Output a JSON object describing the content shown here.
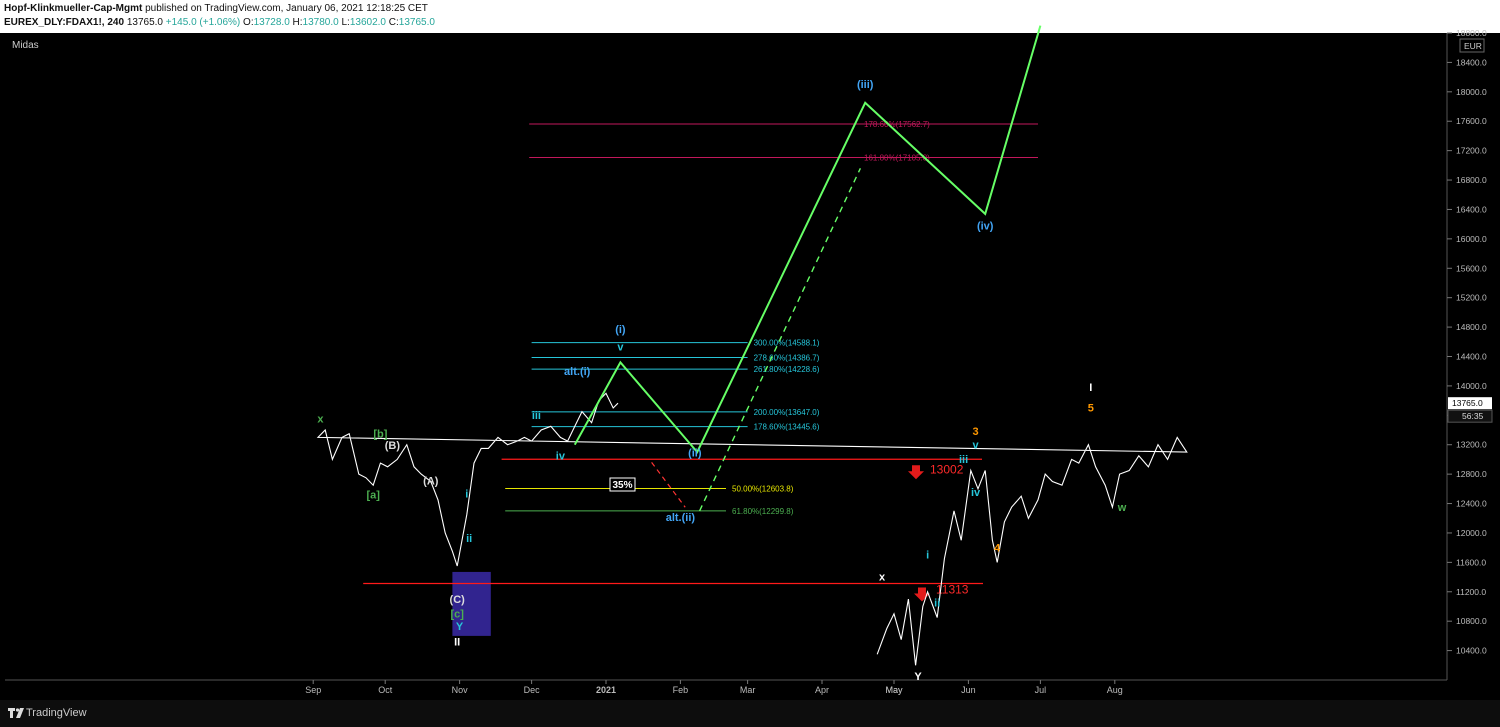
{
  "header": {
    "author": "Hopf-Klinkmueller-Cap-Mgmt",
    "published_text": "published on TradingView.com, January 06, 2021 12:18:25 CET",
    "symbol": "EUREX_DLY:FDAX1!, 240",
    "last": "13765.0",
    "change": "+145.0 (+1.06%)",
    "open_label": "O:",
    "open": "13728.0",
    "high_label": "H:",
    "high": "13780.0",
    "low_label": "L:",
    "low": "13602.0",
    "close_label": "C:",
    "close": "13765.0"
  },
  "indicator_label": "Midas",
  "footer": {
    "brand": "TradingView"
  },
  "chart_data": {
    "type": "line",
    "currency": "EUR",
    "ylim": [
      10000,
      18800
    ],
    "y_ticks": [
      10400,
      10800,
      11200,
      11600,
      12000,
      12400,
      12800,
      13200,
      13600,
      14000,
      14400,
      14800,
      15200,
      15600,
      16000,
      16400,
      16800,
      17200,
      17600,
      18000,
      18400,
      18800
    ],
    "x_ticks": [
      "May",
      "Jun",
      "Jul",
      "Aug",
      "Sep",
      "Oct",
      "Nov",
      "Dec",
      "2021",
      "Feb",
      "Mar",
      "Apr",
      "May"
    ],
    "price_tag": {
      "value": "13765.0",
      "countdown": "56:35"
    },
    "price_series": {
      "x": [
        "Apr 24",
        "Apr 28",
        "May 1",
        "May 4",
        "May 7",
        "May 10",
        "May 13",
        "May 15",
        "May 19",
        "May 22",
        "May 26",
        "May 29",
        "Jun 2",
        "Jun 5",
        "Jun 8",
        "Jun 11",
        "Jun 13",
        "Jun 16",
        "Jun 19",
        "Jun 23",
        "Jun 26",
        "Jun 30",
        "Jul 3",
        "Jul 6",
        "Jul 10",
        "Jul 14",
        "Jul 17",
        "Jul 21",
        "Jul 24",
        "Jul 28",
        "Jul 31",
        "Aug 3",
        "Aug 7",
        "Aug 11",
        "Aug 15",
        "Aug 19",
        "Aug 23",
        "Aug 27",
        "Aug 31",
        "Sep 3",
        "Sep 6",
        "Sep 9",
        "Sep 13",
        "Sep 16",
        "Sep 20",
        "Sep 23",
        "Sep 26",
        "Sep 29",
        "Oct 2",
        "Oct 6",
        "Oct 10",
        "Oct 13",
        "Oct 16",
        "Oct 20",
        "Oct 23",
        "Oct 26",
        "Oct 29",
        "Oct 31",
        "Nov 2",
        "Nov 4",
        "Nov 7",
        "Nov 10",
        "Nov 13",
        "Nov 17",
        "Nov 21",
        "Nov 25",
        "Nov 28",
        "Dec 1",
        "Dec 5",
        "Dec 9",
        "Dec 13",
        "Dec 16",
        "Dec 19",
        "Dec 22",
        "Dec 26",
        "Dec 29",
        "Jan 1",
        "Jan 4",
        "Jan 6"
      ],
      "y": [
        10350,
        10700,
        10900,
        10550,
        11100,
        10200,
        11000,
        11200,
        10850,
        11650,
        12300,
        11900,
        12850,
        12600,
        12850,
        11900,
        11600,
        12150,
        12350,
        12500,
        12200,
        12450,
        12800,
        12700,
        12650,
        13000,
        12950,
        13200,
        12900,
        12650,
        12350,
        12800,
        12850,
        13050,
        12900,
        13200,
        13000,
        13300,
        13100,
        13300,
        13400,
        13000,
        13300,
        13350,
        12800,
        12750,
        12650,
        12950,
        12900,
        13000,
        13200,
        12900,
        12800,
        12700,
        12450,
        12000,
        11750,
        11550,
        11900,
        12250,
        12950,
        13150,
        13150,
        13300,
        13200,
        13250,
        13300,
        13250,
        13400,
        13450,
        13300,
        13250,
        13450,
        13650,
        13500,
        13800,
        13900,
        13700,
        13765
      ]
    },
    "projection_main": {
      "x": [
        "Dec 19",
        "Jan 7",
        "Feb 8",
        "Apr 19",
        "Jun 8",
        "Jul 1"
      ],
      "y": [
        13200,
        14320,
        13100,
        17850,
        16340,
        18900
      ]
    },
    "projection_alt": {
      "x": [
        "Jan 20",
        "Feb 3",
        "Feb 9",
        "Apr 17"
      ],
      "y": [
        12960,
        12350,
        12300,
        16960
      ]
    },
    "fib_levels": [
      {
        "label": "178.60%(17562.7)",
        "value": 17562.7,
        "color": "#c2185b"
      },
      {
        "label": "161.80%(17105.8)",
        "value": 17105.8,
        "color": "#c2185b"
      },
      {
        "label": "300.00%(14588.1)",
        "value": 14588.1,
        "color": "#26c6da"
      },
      {
        "label": "278.60%(14386.7)",
        "value": 14386.7,
        "color": "#26c6da"
      },
      {
        "label": "261.80%(14228.6)",
        "value": 14228.6,
        "color": "#26c6da"
      },
      {
        "label": "200.00%(13647.0)",
        "value": 13647.0,
        "color": "#26c6da"
      },
      {
        "label": "178.60%(13445.6)",
        "value": 13445.6,
        "color": "#26c6da"
      },
      {
        "label": "50.00%(12603.8)",
        "value": 12603.8,
        "color": "#e6e600"
      },
      {
        "label": "61.80%(12299.8)",
        "value": 12299.8,
        "color": "#4caf50"
      }
    ],
    "support_levels": [
      {
        "label": "13002",
        "value": 13002
      },
      {
        "label": "11313",
        "value": 11313
      }
    ],
    "zones": [
      {
        "name": "consolidation",
        "from": "Aug 4",
        "to": "Oct 31",
        "ymin": 12680,
        "ymax": 13130,
        "color": "#c8b400"
      },
      {
        "name": "low-box",
        "from": "Oct 29",
        "to": "Nov 14",
        "ymin": 10600,
        "ymax": 11470,
        "color": "#3a2aa8"
      }
    ],
    "box_label": "35%",
    "wave_labels": [
      {
        "text": "x",
        "x": "Apr 26",
        "y": 11350,
        "color": "#ffffff"
      },
      {
        "text": "Y",
        "x": "May 11",
        "y": 10000,
        "color": "#ffffff"
      },
      {
        "text": "i",
        "x": "May 15",
        "y": 11650,
        "color": "#26c6da"
      },
      {
        "text": "ii",
        "x": "May 19",
        "y": 11000,
        "color": "#26c6da"
      },
      {
        "text": "iii",
        "x": "May 30",
        "y": 12950,
        "color": "#26c6da"
      },
      {
        "text": "iv",
        "x": "Jun 4",
        "y": 12500,
        "color": "#26c6da"
      },
      {
        "text": "v",
        "x": "Jun 4",
        "y": 13150,
        "color": "#26c6da"
      },
      {
        "text": "3",
        "x": "Jun 4",
        "y": 13330,
        "color": "#ff9800"
      },
      {
        "text": "4",
        "x": "Jun 13",
        "y": 11750,
        "color": "#ff9800"
      },
      {
        "text": "5",
        "x": "Jul 22",
        "y": 13650,
        "color": "#ff9800"
      },
      {
        "text": "I",
        "x": "Jul 22",
        "y": 13930,
        "color": "#ffffff"
      },
      {
        "text": "w",
        "x": "Aug 4",
        "y": 12300,
        "color": "#4caf50"
      },
      {
        "text": "x",
        "x": "Sep 4",
        "y": 13500,
        "color": "#4caf50"
      },
      {
        "text": "[b]",
        "x": "Sep 29",
        "y": 13300,
        "color": "#4caf50"
      },
      {
        "text": "(B)",
        "x": "Oct 4",
        "y": 13140,
        "color": "#dddddd"
      },
      {
        "text": "[a]",
        "x": "Sep 26",
        "y": 12470,
        "color": "#4caf50"
      },
      {
        "text": "(A)",
        "x": "Oct 20",
        "y": 12660,
        "color": "#dddddd"
      },
      {
        "text": "i",
        "x": "Nov 4",
        "y": 12480,
        "color": "#26c6da"
      },
      {
        "text": "ii",
        "x": "Nov 5",
        "y": 11880,
        "color": "#26c6da"
      },
      {
        "text": "(C)",
        "x": "Oct 31",
        "y": 11050,
        "color": "#dddddd"
      },
      {
        "text": "[c]",
        "x": "Oct 31",
        "y": 10850,
        "color": "#4caf50"
      },
      {
        "text": "Y",
        "x": "Nov 1",
        "y": 10680,
        "color": "#26c6da"
      },
      {
        "text": "II",
        "x": "Oct 31",
        "y": 10470,
        "color": "#ffffff"
      },
      {
        "text": "iii",
        "x": "Dec 3",
        "y": 13550,
        "color": "#26c6da"
      },
      {
        "text": "iv",
        "x": "Dec 13",
        "y": 13000,
        "color": "#26c6da"
      },
      {
        "text": "alt.(i)",
        "x": "Dec 20",
        "y": 14150,
        "color": "#42a5f5"
      },
      {
        "text": "(i)",
        "x": "Jan 7",
        "y": 14720,
        "color": "#42a5f5"
      },
      {
        "text": "v",
        "x": "Jan 7",
        "y": 14480,
        "color": "#26c6da"
      },
      {
        "text": "(ii)",
        "x": "Feb 7",
        "y": 13040,
        "color": "#42a5f5"
      },
      {
        "text": "alt.(ii)",
        "x": "Feb 1",
        "y": 12160,
        "color": "#42a5f5"
      },
      {
        "text": "(iii)",
        "x": "Apr 19",
        "y": 18050,
        "color": "#42a5f5"
      },
      {
        "text": "(iv)",
        "x": "Jun 8",
        "y": 16130,
        "color": "#42a5f5"
      }
    ]
  }
}
